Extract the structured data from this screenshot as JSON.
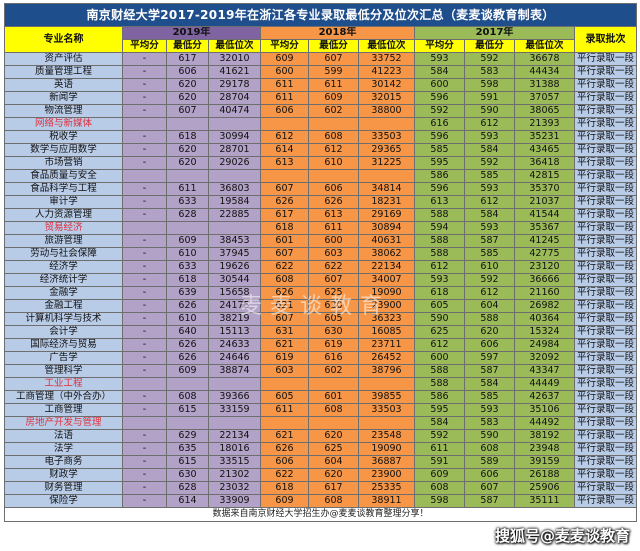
{
  "title": "南京财经大学2017-2019年在浙江各专业录取最低分及位次汇总（麦麦谈教育制表）",
  "headers": {
    "major": "专业名称",
    "batch": "录取批次",
    "years": [
      "2019年",
      "2018年",
      "2017年"
    ],
    "sub": [
      "平均分",
      "最低分",
      "最低位次"
    ]
  },
  "rows": [
    {
      "name": "资产评估",
      "y2019": [
        "-",
        "617",
        "32010"
      ],
      "y2018": [
        "609",
        "607",
        "33752"
      ],
      "y2017": [
        "593",
        "592",
        "36678"
      ],
      "batch": "平行录取一段"
    },
    {
      "name": "质量管理工程",
      "y2019": [
        "-",
        "606",
        "41621"
      ],
      "y2018": [
        "600",
        "599",
        "41223"
      ],
      "y2017": [
        "584",
        "583",
        "44434"
      ],
      "batch": "平行录取一段"
    },
    {
      "name": "英语",
      "y2019": [
        "-",
        "620",
        "29178"
      ],
      "y2018": [
        "611",
        "611",
        "30142"
      ],
      "y2017": [
        "600",
        "598",
        "31388"
      ],
      "batch": "平行录取一段"
    },
    {
      "name": "新闻学",
      "y2019": [
        "-",
        "620",
        "28704"
      ],
      "y2018": [
        "611",
        "609",
        "32015"
      ],
      "y2017": [
        "596",
        "591",
        "37057"
      ],
      "batch": "平行录取一段"
    },
    {
      "name": "物流管理",
      "y2019": [
        "-",
        "607",
        "40474"
      ],
      "y2018": [
        "606",
        "602",
        "38800"
      ],
      "y2017": [
        "592",
        "590",
        "38065"
      ],
      "batch": "平行录取一段"
    },
    {
      "name": "网络与新媒体",
      "pink": true,
      "y2019": [
        "",
        "",
        ""
      ],
      "y2018": [
        "",
        "",
        ""
      ],
      "y2017": [
        "616",
        "612",
        "21393"
      ],
      "batch": "平行录取一段"
    },
    {
      "name": "税收学",
      "y2019": [
        "-",
        "618",
        "30994"
      ],
      "y2018": [
        "612",
        "608",
        "33503"
      ],
      "y2017": [
        "596",
        "593",
        "35231"
      ],
      "batch": "平行录取一段"
    },
    {
      "name": "数学与应用数学",
      "y2019": [
        "-",
        "620",
        "28701"
      ],
      "y2018": [
        "614",
        "612",
        "29365"
      ],
      "y2017": [
        "585",
        "584",
        "43465"
      ],
      "batch": "平行录取一段"
    },
    {
      "name": "市场营销",
      "y2019": [
        "-",
        "620",
        "29026"
      ],
      "y2018": [
        "613",
        "610",
        "31225"
      ],
      "y2017": [
        "595",
        "592",
        "36418"
      ],
      "batch": "平行录取一段"
    },
    {
      "name": "食品质量与安全",
      "y2019": [
        "",
        "",
        ""
      ],
      "y2018": [
        "",
        "",
        ""
      ],
      "y2017": [
        "586",
        "585",
        "42815"
      ],
      "batch": "平行录取一段"
    },
    {
      "name": "食品科学与工程",
      "y2019": [
        "-",
        "611",
        "36803"
      ],
      "y2018": [
        "607",
        "606",
        "34814"
      ],
      "y2017": [
        "596",
        "593",
        "35370"
      ],
      "batch": "平行录取一段"
    },
    {
      "name": "审计学",
      "y2019": [
        "-",
        "633",
        "19584"
      ],
      "y2018": [
        "626",
        "626",
        "18231"
      ],
      "y2017": [
        "613",
        "612",
        "21037"
      ],
      "batch": "平行录取一段"
    },
    {
      "name": "人力资源管理",
      "y2019": [
        "-",
        "628",
        "22885"
      ],
      "y2018": [
        "617",
        "613",
        "29169"
      ],
      "y2017": [
        "588",
        "584",
        "41544"
      ],
      "batch": "平行录取一段"
    },
    {
      "name": "贸易经济",
      "pink": true,
      "y2019": [
        "",
        "",
        ""
      ],
      "y2018": [
        "618",
        "611",
        "30894"
      ],
      "y2017": [
        "594",
        "593",
        "35367"
      ],
      "batch": "平行录取一段"
    },
    {
      "name": "旅游管理",
      "y2019": [
        "-",
        "609",
        "38453"
      ],
      "y2018": [
        "601",
        "600",
        "40631"
      ],
      "y2017": [
        "588",
        "587",
        "41245"
      ],
      "batch": "平行录取一段"
    },
    {
      "name": "劳动与社会保障",
      "y2019": [
        "-",
        "610",
        "37945"
      ],
      "y2018": [
        "607",
        "603",
        "38062"
      ],
      "y2017": [
        "588",
        "585",
        "42775"
      ],
      "batch": "平行录取一段"
    },
    {
      "name": "经济学",
      "y2019": [
        "-",
        "633",
        "19626"
      ],
      "y2018": [
        "622",
        "622",
        "22134"
      ],
      "y2017": [
        "612",
        "610",
        "23120"
      ],
      "batch": "平行录取一段"
    },
    {
      "name": "经济统计学",
      "y2019": [
        "-",
        "618",
        "30544"
      ],
      "y2018": [
        "608",
        "607",
        "34007"
      ],
      "y2017": [
        "593",
        "592",
        "36666"
      ],
      "batch": "平行录取一段"
    },
    {
      "name": "金融学",
      "y2019": [
        "-",
        "639",
        "15658"
      ],
      "y2018": [
        "626",
        "625",
        "19090"
      ],
      "y2017": [
        "618",
        "612",
        "21160"
      ],
      "batch": "平行录取一段"
    },
    {
      "name": "金融工程",
      "y2019": [
        "-",
        "626",
        "24175"
      ],
      "y2018": [
        "621",
        "620",
        "23900"
      ],
      "y2017": [
        "605",
        "604",
        "26982"
      ],
      "batch": "平行录取一段"
    },
    {
      "name": "计算机科学与技术",
      "y2019": [
        "-",
        "610",
        "38219"
      ],
      "y2018": [
        "607",
        "605",
        "36323"
      ],
      "y2017": [
        "590",
        "588",
        "40364"
      ],
      "batch": "平行录取一段"
    },
    {
      "name": "会计学",
      "y2019": [
        "-",
        "640",
        "15113"
      ],
      "y2018": [
        "631",
        "630",
        "16085"
      ],
      "y2017": [
        "625",
        "620",
        "15324"
      ],
      "batch": "平行录取一段"
    },
    {
      "name": "国际经济与贸易",
      "y2019": [
        "-",
        "626",
        "24633"
      ],
      "y2018": [
        "621",
        "619",
        "23711"
      ],
      "y2017": [
        "612",
        "606",
        "24984"
      ],
      "batch": "平行录取一段"
    },
    {
      "name": "广告学",
      "y2019": [
        "-",
        "626",
        "24646"
      ],
      "y2018": [
        "619",
        "616",
        "26452"
      ],
      "y2017": [
        "600",
        "597",
        "32092"
      ],
      "batch": "平行录取一段"
    },
    {
      "name": "管理科学",
      "y2019": [
        "-",
        "609",
        "38874"
      ],
      "y2018": [
        "603",
        "602",
        "38796"
      ],
      "y2017": [
        "588",
        "587",
        "43347"
      ],
      "batch": "平行录取一段"
    },
    {
      "name": "工业工程",
      "pink": true,
      "y2019": [
        "",
        "",
        ""
      ],
      "y2018": [
        "",
        "",
        ""
      ],
      "y2017": [
        "588",
        "584",
        "44449"
      ],
      "batch": "平行录取一段"
    },
    {
      "name": "工商管理（中外合办）",
      "y2019": [
        "-",
        "608",
        "39366"
      ],
      "y2018": [
        "605",
        "601",
        "39855"
      ],
      "y2017": [
        "586",
        "585",
        "42637"
      ],
      "batch": "平行录取一段"
    },
    {
      "name": "工商管理",
      "y2019": [
        "-",
        "615",
        "33159"
      ],
      "y2018": [
        "611",
        "608",
        "33503"
      ],
      "y2017": [
        "595",
        "593",
        "35106"
      ],
      "batch": "平行录取一段"
    },
    {
      "name": "房地产开发与管理",
      "pink": true,
      "y2019": [
        "",
        "",
        ""
      ],
      "y2018": [
        "",
        "",
        ""
      ],
      "y2017": [
        "584",
        "583",
        "44492"
      ],
      "batch": "平行录取一段"
    },
    {
      "name": "法语",
      "y2019": [
        "-",
        "629",
        "22134"
      ],
      "y2018": [
        "621",
        "620",
        "23548"
      ],
      "y2017": [
        "592",
        "590",
        "38192"
      ],
      "batch": "平行录取一段"
    },
    {
      "name": "法学",
      "y2019": [
        "-",
        "635",
        "18016"
      ],
      "y2018": [
        "626",
        "625",
        "19090"
      ],
      "y2017": [
        "611",
        "608",
        "23948"
      ],
      "batch": "平行录取一段"
    },
    {
      "name": "电子商务",
      "y2019": [
        "-",
        "615",
        "33515"
      ],
      "y2018": [
        "606",
        "604",
        "36887"
      ],
      "y2017": [
        "591",
        "589",
        "39159"
      ],
      "batch": "平行录取一段"
    },
    {
      "name": "财政学",
      "y2019": [
        "-",
        "630",
        "21302"
      ],
      "y2018": [
        "622",
        "620",
        "23900"
      ],
      "y2017": [
        "609",
        "606",
        "26188"
      ],
      "batch": "平行录取一段"
    },
    {
      "name": "财务管理",
      "y2019": [
        "-",
        "628",
        "23032"
      ],
      "y2018": [
        "618",
        "617",
        "25335"
      ],
      "y2017": [
        "608",
        "607",
        "25906"
      ],
      "batch": "平行录取一段"
    },
    {
      "name": "保险学",
      "y2019": [
        "-",
        "614",
        "33909"
      ],
      "y2018": [
        "609",
        "608",
        "38911"
      ],
      "y2017": [
        "598",
        "587",
        "35111"
      ],
      "batch": "平行录取一段"
    }
  ],
  "footer": "数据来自南京财经大学招生办@麦麦谈教育整理分享！",
  "watermark": "麦麦谈教育",
  "sohu_mark": "搜狐号@麦麦谈教育"
}
